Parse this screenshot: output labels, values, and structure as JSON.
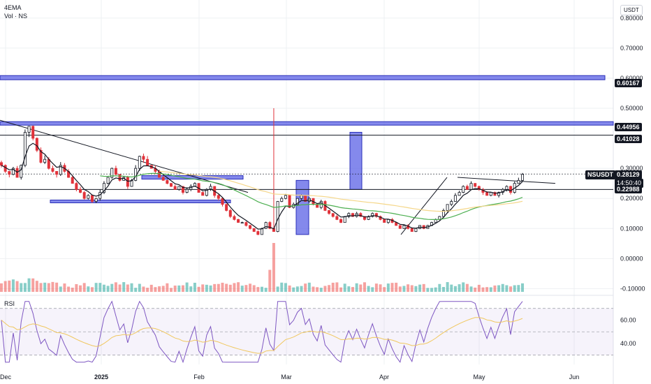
{
  "chart_data": {
    "type": "candlestick",
    "symbol": "NSUSDT",
    "currency": "USDT",
    "indicators": [
      "4EMA",
      "Vol · NS"
    ],
    "rsi_label": "RSI",
    "price_axis": {
      "ticks": [
        "0.80000",
        "0.70000",
        "0.60000",
        "0.50000",
        "0.30000",
        "0.20000",
        "0.10000",
        "0.00000",
        "-0.10000"
      ],
      "ylim": [
        -0.12,
        0.86
      ]
    },
    "price_tags": {
      "last": "0.28129",
      "countdown": "14:50:40",
      "levels": [
        "0.60167",
        "0.44956",
        "0.41028",
        "0.22988"
      ]
    },
    "rsi_axis": {
      "ticks": [
        "60.00",
        "40.00"
      ],
      "ylim": [
        22,
        80
      ],
      "band": [
        30,
        70
      ]
    },
    "x_axis": {
      "ticks": [
        "Dec",
        "2025",
        "Feb",
        "Mar",
        "Apr",
        "May",
        "Jun"
      ]
    },
    "colors": {
      "up": "#26a69a",
      "down": "#ef5350",
      "zone": "#5b62e6",
      "rsi_line": "#7e57c2",
      "rsi_ma": "#f0c75e",
      "ema_fast": "#131722",
      "ema_green": "#4caf50",
      "ema_gold": "#f5d78a"
    },
    "horizontal_levels": [
      0.60167,
      0.44956,
      0.41028,
      0.22988,
      0.28129
    ],
    "candle_closes": [
      0.31,
      0.29,
      0.28,
      0.3,
      0.27,
      0.31,
      0.42,
      0.44,
      0.4,
      0.36,
      0.32,
      0.33,
      0.3,
      0.29,
      0.28,
      0.31,
      0.29,
      0.27,
      0.25,
      0.23,
      0.22,
      0.2,
      0.21,
      0.19,
      0.2,
      0.22,
      0.25,
      0.27,
      0.3,
      0.28,
      0.26,
      0.27,
      0.24,
      0.26,
      0.3,
      0.34,
      0.33,
      0.31,
      0.3,
      0.29,
      0.27,
      0.26,
      0.25,
      0.24,
      0.23,
      0.24,
      0.22,
      0.23,
      0.24,
      0.25,
      0.22,
      0.21,
      0.23,
      0.24,
      0.21,
      0.2,
      0.18,
      0.16,
      0.14,
      0.13,
      0.12,
      0.12,
      0.11,
      0.1,
      0.09,
      0.08,
      0.1,
      0.12,
      0.1,
      0.09,
      0.19,
      0.2,
      0.21,
      0.17,
      0.18,
      0.2,
      0.21,
      0.19,
      0.2,
      0.18,
      0.17,
      0.19,
      0.16,
      0.15,
      0.14,
      0.13,
      0.12,
      0.14,
      0.15,
      0.14,
      0.15,
      0.14,
      0.13,
      0.14,
      0.15,
      0.14,
      0.13,
      0.12,
      0.13,
      0.12,
      0.11,
      0.1,
      0.11,
      0.1,
      0.09,
      0.1,
      0.11,
      0.1,
      0.11,
      0.12,
      0.13,
      0.14,
      0.16,
      0.18,
      0.19,
      0.21,
      0.22,
      0.24,
      0.23,
      0.25,
      0.24,
      0.23,
      0.22,
      0.21,
      0.22,
      0.21,
      0.22,
      0.23,
      0.24,
      0.22,
      0.25,
      0.26,
      0.28
    ]
  }
}
